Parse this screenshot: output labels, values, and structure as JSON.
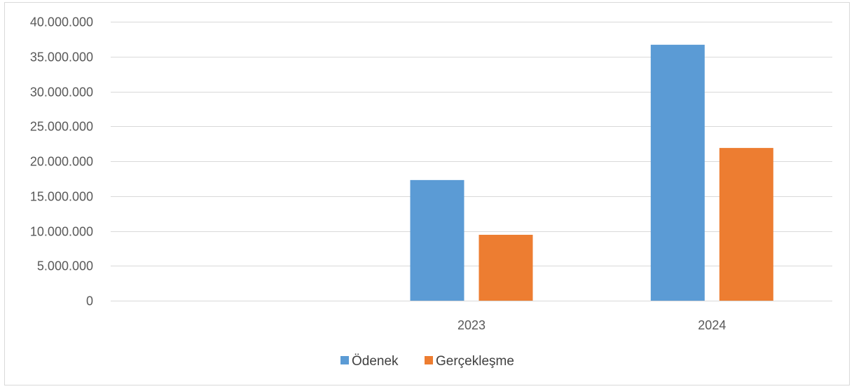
{
  "chart_data": {
    "type": "bar",
    "categories": [
      "",
      "2023",
      "2024"
    ],
    "series": [
      {
        "name": "Ödenek",
        "color": "#5b9bd5",
        "values": [
          null,
          17300000,
          36700000
        ]
      },
      {
        "name": "Gerçekleşme",
        "color": "#ed7d31",
        "values": [
          null,
          9450000,
          21900000
        ]
      }
    ],
    "ylim": [
      0,
      40000000
    ],
    "yticks": [
      0,
      5000000,
      10000000,
      15000000,
      20000000,
      25000000,
      30000000,
      35000000,
      40000000
    ],
    "ytick_labels": [
      "0",
      "5.000.000",
      "10.000.000",
      "15.000.000",
      "20.000.000",
      "25.000.000",
      "30.000.000",
      "35.000.000",
      "40.000.000"
    ],
    "grid": true,
    "legend": "bottom",
    "title": "",
    "xlabel": "",
    "ylabel": ""
  }
}
